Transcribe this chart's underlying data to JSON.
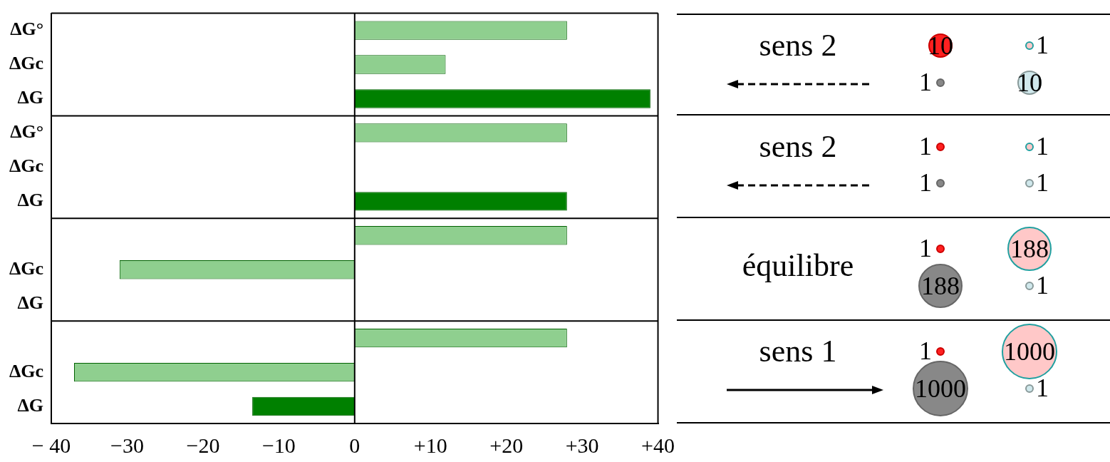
{
  "chart_data": [
    {
      "type": "bar",
      "orientation": "horizontal",
      "categories": [
        "ΔG°",
        "ΔGc",
        "ΔG",
        "ΔG°",
        "ΔGc",
        "ΔG",
        null,
        "ΔGc",
        "ΔG",
        null,
        "ΔGc",
        "ΔG"
      ],
      "values": [
        28,
        12,
        39,
        28,
        0,
        28,
        28,
        -31,
        0,
        28,
        -37,
        -13.5
      ],
      "colors": [
        "#8fcf8f",
        "#8fcf8f",
        "#008000",
        "#8fcf8f",
        "#8fcf8f",
        "#008000",
        "#8fcf8f",
        "#8fcf8f",
        "#008000",
        "#8fcf8f",
        "#8fcf8f",
        "#008000"
      ],
      "xlim": [
        -40,
        40
      ],
      "xticks": [
        {
          "value": -40,
          "label": "− 40"
        },
        {
          "value": -30,
          "label": "−30"
        },
        {
          "value": -20,
          "label": "−20"
        },
        {
          "value": -10,
          "label": "−10"
        },
        0,
        {
          "value": 10,
          "label": "+10"
        },
        {
          "value": 20,
          "label": "+20"
        },
        {
          "value": 30,
          "label": "+30"
        },
        {
          "value": 40,
          "label": "+40"
        }
      ],
      "ref_lines": [
        {
          "axis": "x",
          "value": 0,
          "color": "#000000"
        }
      ],
      "grid": false,
      "legend": false
    },
    {
      "type": "other",
      "categories": [
        "sens 2",
        "sens 2",
        "équilibre",
        "sens 1"
      ],
      "series": [
        {
          "color": "#ff2020",
          "values": [
            10,
            1,
            1,
            1
          ],
          "value_labels": [
            "10",
            "1",
            "1",
            "1"
          ]
        },
        {
          "color": "#ffc8c8",
          "values": [
            1,
            1,
            188,
            1000
          ],
          "value_labels": [
            "1",
            "1",
            "188",
            "1000"
          ]
        },
        {
          "color": "#888888",
          "values": [
            1,
            1,
            188,
            1000
          ],
          "value_labels": [
            "1",
            "1",
            "188",
            "1000"
          ]
        },
        {
          "color": "#d0e8ec",
          "values": [
            10,
            1,
            1,
            1
          ],
          "value_labels": [
            "10",
            "1",
            "1",
            "1"
          ]
        }
      ]
    }
  ]
}
